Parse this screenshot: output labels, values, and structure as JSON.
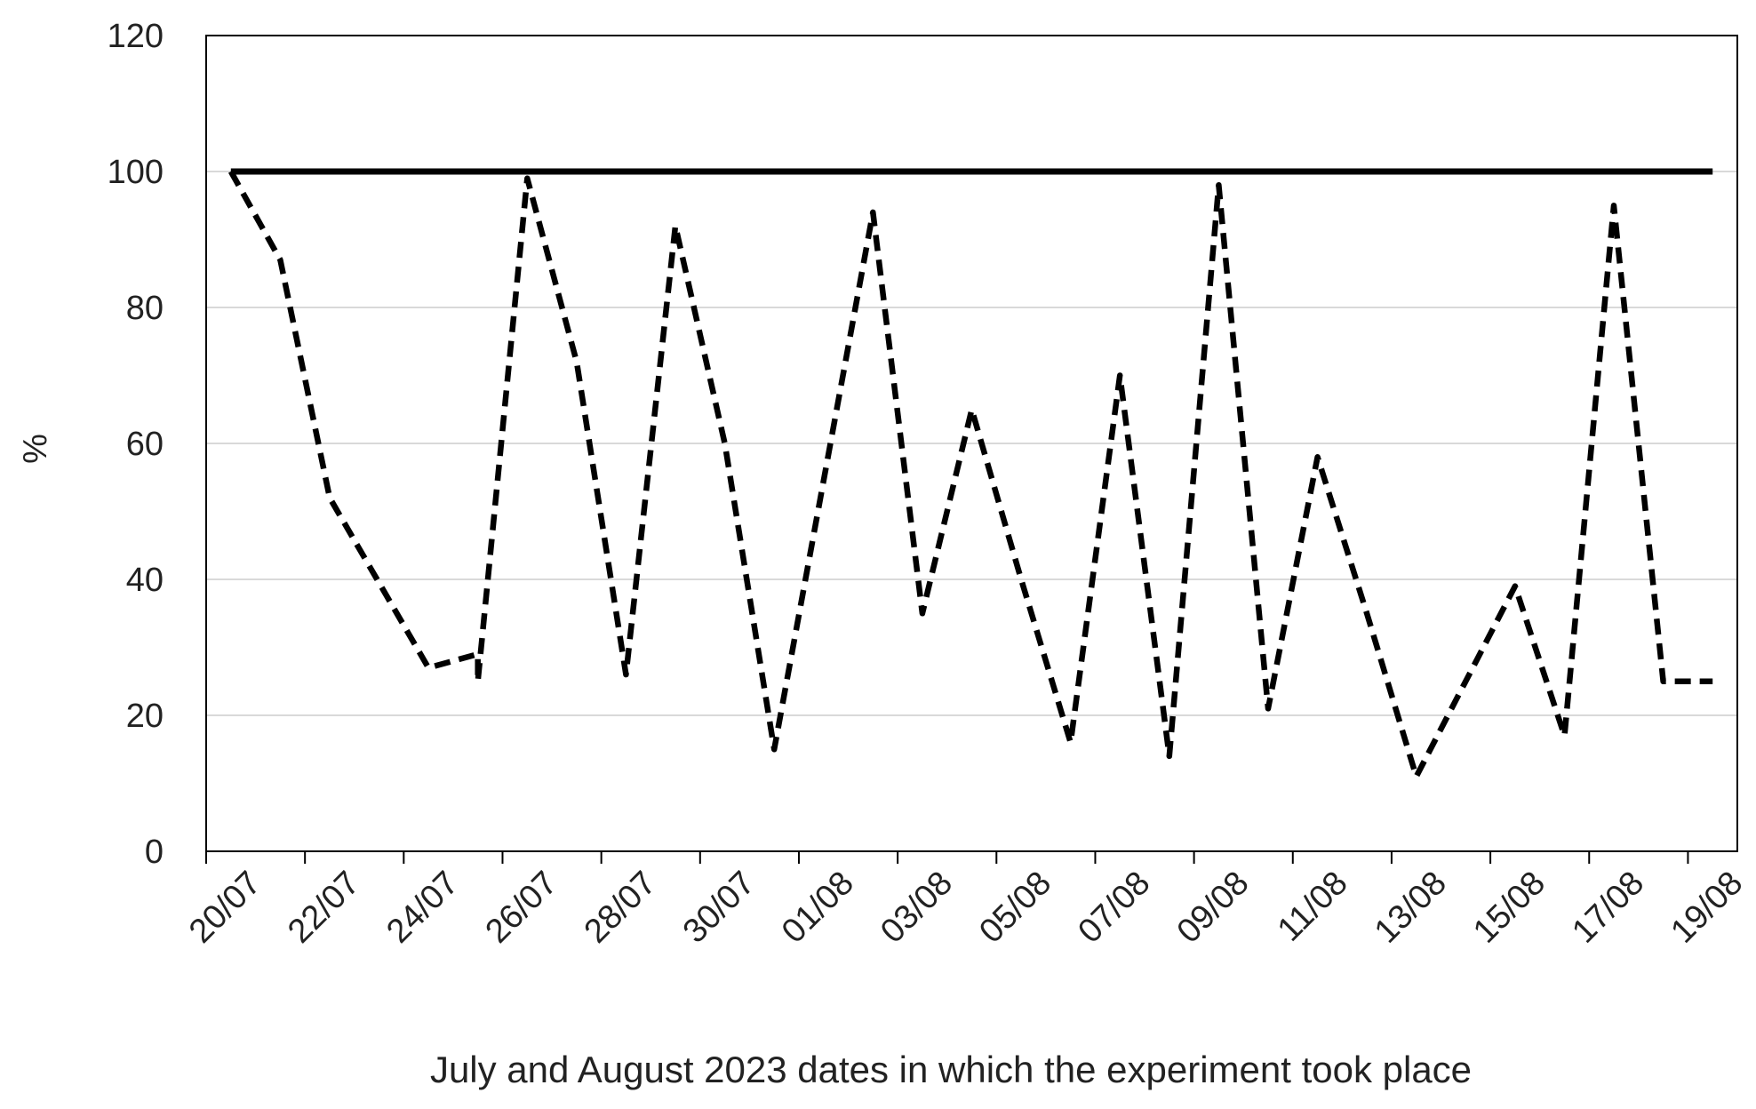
{
  "chart_data": {
    "type": "line",
    "title": "",
    "xlabel": "July and August 2023 dates in which the experiment took place",
    "ylabel": "%",
    "ylim": [
      0,
      120
    ],
    "yticks": [
      0,
      20,
      40,
      60,
      80,
      100,
      120
    ],
    "xlim": [
      "2023-07-20",
      "2023-08-20"
    ],
    "xticks": [
      "20/07",
      "22/07",
      "24/07",
      "26/07",
      "28/07",
      "30/07",
      "01/08",
      "03/08",
      "05/08",
      "07/08",
      "09/08",
      "11/08",
      "13/08",
      "15/08",
      "17/08",
      "19/08"
    ],
    "grid": true,
    "legend": "none",
    "colors": {
      "series": "#000000",
      "grid": "#d9d9d9",
      "axis": "#000000"
    },
    "series": [
      {
        "style": "solid",
        "x": [
          "2023-07-20",
          "2023-08-19"
        ],
        "y": [
          100,
          100
        ]
      },
      {
        "style": "dashed",
        "x": [
          "2023-07-20",
          "2023-07-21",
          "2023-07-22",
          "2023-07-24",
          "2023-07-25",
          "2023-07-25",
          "2023-07-26",
          "2023-07-27",
          "2023-07-28",
          "2023-07-29",
          "2023-07-30",
          "2023-07-31",
          "2023-08-02",
          "2023-08-03",
          "2023-08-04",
          "2023-08-05",
          "2023-08-06",
          "2023-08-07",
          "2023-08-08",
          "2023-08-09",
          "2023-08-10",
          "2023-08-11",
          "2023-08-12",
          "2023-08-13",
          "2023-08-15",
          "2023-08-16",
          "2023-08-17",
          "2023-08-18",
          "2023-08-19"
        ],
        "y": [
          100,
          87,
          52,
          27,
          29,
          25,
          99,
          72,
          26,
          92,
          60,
          15,
          94,
          35,
          65,
          40,
          16,
          70,
          14,
          98,
          21,
          58,
          35,
          11,
          39,
          17,
          95,
          25,
          25
        ]
      }
    ]
  }
}
